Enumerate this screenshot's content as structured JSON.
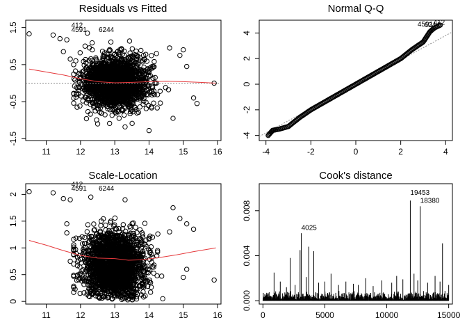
{
  "chart_data": [
    {
      "type": "scatter",
      "title": "Residuals vs Fitted",
      "xlabel": "",
      "ylabel": "",
      "xlim": [
        10.4,
        16.1
      ],
      "ylim": [
        -1.55,
        1.7
      ],
      "x_ticks": [
        11,
        12,
        13,
        14,
        15,
        16
      ],
      "y_ticks": [
        -1.5,
        -0.5,
        0.5,
        1.5
      ],
      "reference_line": 0,
      "bulk": {
        "x_center": 13.0,
        "x_spread": 0.45,
        "x_range": [
          11.8,
          14.8
        ],
        "y_spread": 0.33,
        "y_range": [
          -1.1,
          1.35
        ]
      },
      "points": [
        {
          "x": 10.5,
          "y": 1.33
        },
        {
          "x": 11.2,
          "y": 1.3
        },
        {
          "x": 11.4,
          "y": 1.2
        },
        {
          "x": 11.6,
          "y": 1.17
        },
        {
          "x": 11.5,
          "y": 0.85
        },
        {
          "x": 11.7,
          "y": 0.65
        },
        {
          "x": 11.8,
          "y": 0.5
        },
        {
          "x": 14.9,
          "y": 0.75
        },
        {
          "x": 15.1,
          "y": 0.45
        },
        {
          "x": 15.3,
          "y": -0.4
        },
        {
          "x": 15.4,
          "y": -0.55
        },
        {
          "x": 15.9,
          "y": 0.0
        },
        {
          "x": 14.7,
          "y": -0.95
        },
        {
          "x": 14.0,
          "y": -1.28
        },
        {
          "x": 13.3,
          "y": -1.18
        },
        {
          "x": 12.5,
          "y": -1.1
        },
        {
          "x": 14.6,
          "y": 0.95
        },
        {
          "x": 15.0,
          "y": 0.9
        },
        {
          "x": 11.9,
          "y": -0.65
        },
        {
          "x": 12.2,
          "y": 1.35
        }
      ],
      "labeled_points": [
        {
          "label": "412",
          "x": 11.73,
          "y": 1.5
        },
        {
          "label": "4591",
          "x": 11.73,
          "y": 1.38
        },
        {
          "label": "6244",
          "x": 12.53,
          "y": 1.38
        }
      ],
      "smooth_line": [
        {
          "x": 10.5,
          "y": 0.38
        },
        {
          "x": 11.0,
          "y": 0.3
        },
        {
          "x": 11.5,
          "y": 0.22
        },
        {
          "x": 12.0,
          "y": 0.12
        },
        {
          "x": 12.5,
          "y": 0.04
        },
        {
          "x": 13.0,
          "y": 0.01
        },
        {
          "x": 13.5,
          "y": 0.02
        },
        {
          "x": 14.0,
          "y": 0.04
        },
        {
          "x": 14.5,
          "y": 0.05
        },
        {
          "x": 15.0,
          "y": 0.04
        },
        {
          "x": 15.5,
          "y": 0.02
        },
        {
          "x": 15.95,
          "y": 0.0
        }
      ]
    },
    {
      "type": "scatter",
      "title": "Normal Q-Q",
      "xlabel": "",
      "ylabel": "",
      "xlim": [
        -4.3,
        4.3
      ],
      "ylim": [
        -4.4,
        5.0
      ],
      "x_ticks": [
        -4,
        -2,
        0,
        2,
        4
      ],
      "y_ticks": [
        -4,
        -2,
        0,
        2,
        4
      ],
      "reference_line": {
        "slope": 0.95,
        "intercept": 0.0
      },
      "qq_curve": [
        {
          "x": -3.9,
          "y": -4.0
        },
        {
          "x": -3.7,
          "y": -3.6
        },
        {
          "x": -3.4,
          "y": -3.5
        },
        {
          "x": -3.0,
          "y": -3.3
        },
        {
          "x": -2.5,
          "y": -2.6
        },
        {
          "x": -2.0,
          "y": -2.0
        },
        {
          "x": -1.0,
          "y": -1.0
        },
        {
          "x": 0.0,
          "y": 0.0
        },
        {
          "x": 1.0,
          "y": 1.0
        },
        {
          "x": 2.0,
          "y": 2.0
        },
        {
          "x": 2.5,
          "y": 2.7
        },
        {
          "x": 3.0,
          "y": 3.3
        },
        {
          "x": 3.3,
          "y": 4.1
        },
        {
          "x": 3.5,
          "y": 4.4
        },
        {
          "x": 3.8,
          "y": 4.65
        }
      ],
      "labeled_points": [
        {
          "label": "412",
          "x": 3.45,
          "y": 4.65
        },
        {
          "label": "4591",
          "x": 2.75,
          "y": 4.5
        },
        {
          "label": "6244",
          "x": 3.05,
          "y": 4.45
        }
      ]
    },
    {
      "type": "scatter",
      "title": "Scale-Location",
      "xlabel": "",
      "ylabel": "",
      "xlim": [
        10.4,
        16.1
      ],
      "ylim": [
        -0.05,
        2.2
      ],
      "x_ticks": [
        11,
        12,
        13,
        14,
        15,
        16
      ],
      "y_ticks": [
        0.0,
        0.5,
        1.0,
        1.5,
        2.0
      ],
      "bulk": {
        "x_center": 13.0,
        "x_spread": 0.45,
        "x_range": [
          11.8,
          14.8
        ],
        "y_range": [
          0.03,
          1.95
        ]
      },
      "points": [
        {
          "x": 10.5,
          "y": 2.05
        },
        {
          "x": 11.2,
          "y": 2.03
        },
        {
          "x": 11.5,
          "y": 1.92
        },
        {
          "x": 11.7,
          "y": 1.9
        },
        {
          "x": 11.6,
          "y": 1.45
        },
        {
          "x": 11.6,
          "y": 1.28
        },
        {
          "x": 11.7,
          "y": 0.75
        },
        {
          "x": 11.8,
          "y": 0.7
        },
        {
          "x": 14.9,
          "y": 1.55
        },
        {
          "x": 15.1,
          "y": 1.45
        },
        {
          "x": 15.3,
          "y": 1.35
        },
        {
          "x": 15.1,
          "y": 0.6
        },
        {
          "x": 15.0,
          "y": 0.45
        },
        {
          "x": 15.9,
          "y": 0.4
        },
        {
          "x": 14.7,
          "y": 1.75
        },
        {
          "x": 14.6,
          "y": 1.3
        },
        {
          "x": 14.4,
          "y": 0.05
        },
        {
          "x": 12.3,
          "y": 1.95
        },
        {
          "x": 13.3,
          "y": 1.9
        },
        {
          "x": 14.1,
          "y": 1.2
        }
      ],
      "labeled_points": [
        {
          "label": "412",
          "x": 11.73,
          "y": 2.15
        },
        {
          "label": "4591",
          "x": 11.73,
          "y": 2.07
        },
        {
          "label": "6244",
          "x": 12.53,
          "y": 2.07
        }
      ],
      "smooth_line": [
        {
          "x": 10.5,
          "y": 1.14
        },
        {
          "x": 11.0,
          "y": 1.05
        },
        {
          "x": 11.5,
          "y": 0.95
        },
        {
          "x": 12.0,
          "y": 0.86
        },
        {
          "x": 12.5,
          "y": 0.81
        },
        {
          "x": 13.0,
          "y": 0.8
        },
        {
          "x": 13.4,
          "y": 0.77
        },
        {
          "x": 13.8,
          "y": 0.78
        },
        {
          "x": 14.3,
          "y": 0.82
        },
        {
          "x": 14.8,
          "y": 0.87
        },
        {
          "x": 15.3,
          "y": 0.93
        },
        {
          "x": 15.95,
          "y": 1.0
        }
      ]
    },
    {
      "type": "bar",
      "title": "Cook's distance",
      "xlabel": "",
      "ylabel": "",
      "xlim": [
        -300,
        15300
      ],
      "ylim": [
        -0.0003,
        0.0104
      ],
      "x_ticks": [
        0,
        5000,
        10000,
        15000
      ],
      "y_ticks": [
        0.0,
        0.004,
        0.008
      ],
      "y_tick_labels": [
        "0.000",
        "0.004",
        "0.008"
      ],
      "spikes": [
        {
          "x": 300,
          "y": 0.0007
        },
        {
          "x": 900,
          "y": 0.0025
        },
        {
          "x": 1400,
          "y": 0.0017
        },
        {
          "x": 1900,
          "y": 0.0012
        },
        {
          "x": 2200,
          "y": 0.0038
        },
        {
          "x": 2600,
          "y": 0.0014
        },
        {
          "x": 3000,
          "y": 0.0045
        },
        {
          "x": 3100,
          "y": 0.006
        },
        {
          "x": 3500,
          "y": 0.0021
        },
        {
          "x": 3700,
          "y": 0.0048
        },
        {
          "x": 4100,
          "y": 0.0044
        },
        {
          "x": 4500,
          "y": 0.0016
        },
        {
          "x": 5000,
          "y": 0.0017
        },
        {
          "x": 5500,
          "y": 0.0024
        },
        {
          "x": 6100,
          "y": 0.0014
        },
        {
          "x": 6700,
          "y": 0.0017
        },
        {
          "x": 7300,
          "y": 0.0015
        },
        {
          "x": 7700,
          "y": 0.0014
        },
        {
          "x": 8300,
          "y": 0.002
        },
        {
          "x": 8900,
          "y": 0.0013
        },
        {
          "x": 9600,
          "y": 0.0018
        },
        {
          "x": 10400,
          "y": 0.0016
        },
        {
          "x": 10800,
          "y": 0.0022
        },
        {
          "x": 11300,
          "y": 0.0019
        },
        {
          "x": 11900,
          "y": 0.0089
        },
        {
          "x": 12200,
          "y": 0.0024
        },
        {
          "x": 12500,
          "y": 0.0018
        },
        {
          "x": 12700,
          "y": 0.0084
        },
        {
          "x": 13300,
          "y": 0.0016
        },
        {
          "x": 13900,
          "y": 0.0022
        },
        {
          "x": 14300,
          "y": 0.0017
        },
        {
          "x": 14500,
          "y": 0.0051
        },
        {
          "x": 15000,
          "y": 0.0014
        }
      ],
      "baseline_band": {
        "count": 15000,
        "max": 0.0009
      },
      "labeled_points": [
        {
          "label": "4025",
          "x": 3100,
          "y": 0.0063
        },
        {
          "label": "19453",
          "x": 11900,
          "y": 0.0094
        },
        {
          "label": "18380",
          "x": 12700,
          "y": 0.0087
        }
      ]
    }
  ]
}
